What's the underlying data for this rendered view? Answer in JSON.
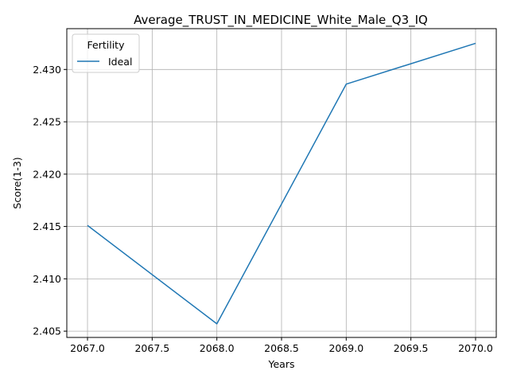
{
  "chart_data": {
    "type": "line",
    "title": "Average_TRUST_IN_MEDICINE_White_Male_Q3_IQ",
    "xlabel": "Years",
    "ylabel": "Score(1-3)",
    "x": [
      2067,
      2068,
      2069,
      2070
    ],
    "series": [
      {
        "name": "Ideal",
        "color": "#1f77b4",
        "values": [
          2.4151,
          2.4057,
          2.4286,
          2.4325
        ]
      }
    ],
    "xlim": [
      2066.84,
      2070.16
    ],
    "ylim": [
      2.4044,
      2.4339
    ],
    "xticks": [
      2067.0,
      2067.5,
      2068.0,
      2068.5,
      2069.0,
      2069.5,
      2070.0
    ],
    "xtick_labels": [
      "2067.0",
      "2067.5",
      "2068.0",
      "2068.5",
      "2069.0",
      "2069.5",
      "2070.0"
    ],
    "yticks": [
      2.405,
      2.41,
      2.415,
      2.42,
      2.425,
      2.43
    ],
    "ytick_labels": [
      "2.405",
      "2.410",
      "2.415",
      "2.420",
      "2.425",
      "2.430"
    ],
    "grid": true,
    "legend": {
      "title": "Fertility",
      "placement": "top-left"
    }
  }
}
